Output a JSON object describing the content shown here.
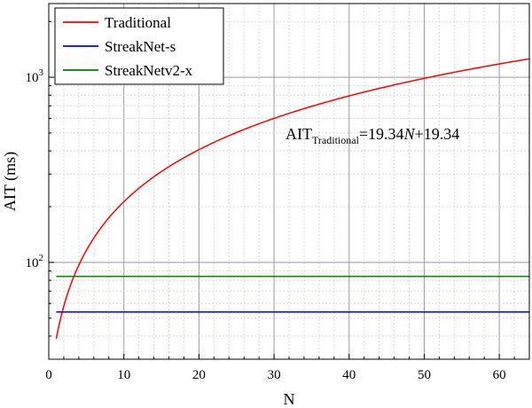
{
  "chart_data": {
    "type": "line",
    "xlabel": "N",
    "ylabel": "AIT (ms)",
    "xlim": [
      0,
      64
    ],
    "ylim": [
      30,
      2500
    ],
    "yscale": "log",
    "grid": true,
    "legend_position": "top-left",
    "x_ticks": [
      0,
      10,
      20,
      30,
      40,
      50,
      60
    ],
    "y_ticks": [
      {
        "base": "10",
        "exp": "2",
        "value": 100
      },
      {
        "base": "10",
        "exp": "3",
        "value": 1000
      }
    ],
    "series": [
      {
        "name": "Traditional",
        "color": "#ff0000",
        "formula": {
          "slope": 19.34,
          "intercept": 19.34
        },
        "x_range": [
          1,
          64
        ]
      },
      {
        "name": "StreakNet-s",
        "color": "#0000ff",
        "constant": 54,
        "x_range": [
          1,
          64
        ]
      },
      {
        "name": "StreakNetv2-x",
        "color": "#008000",
        "constant": 84,
        "x_range": [
          1,
          64
        ]
      }
    ],
    "annotation": {
      "main": "AIT",
      "subscript": "Traditional",
      "eq_prefix": "=19.34",
      "eq_var": "N",
      "eq_suffix": "+19.34"
    }
  }
}
